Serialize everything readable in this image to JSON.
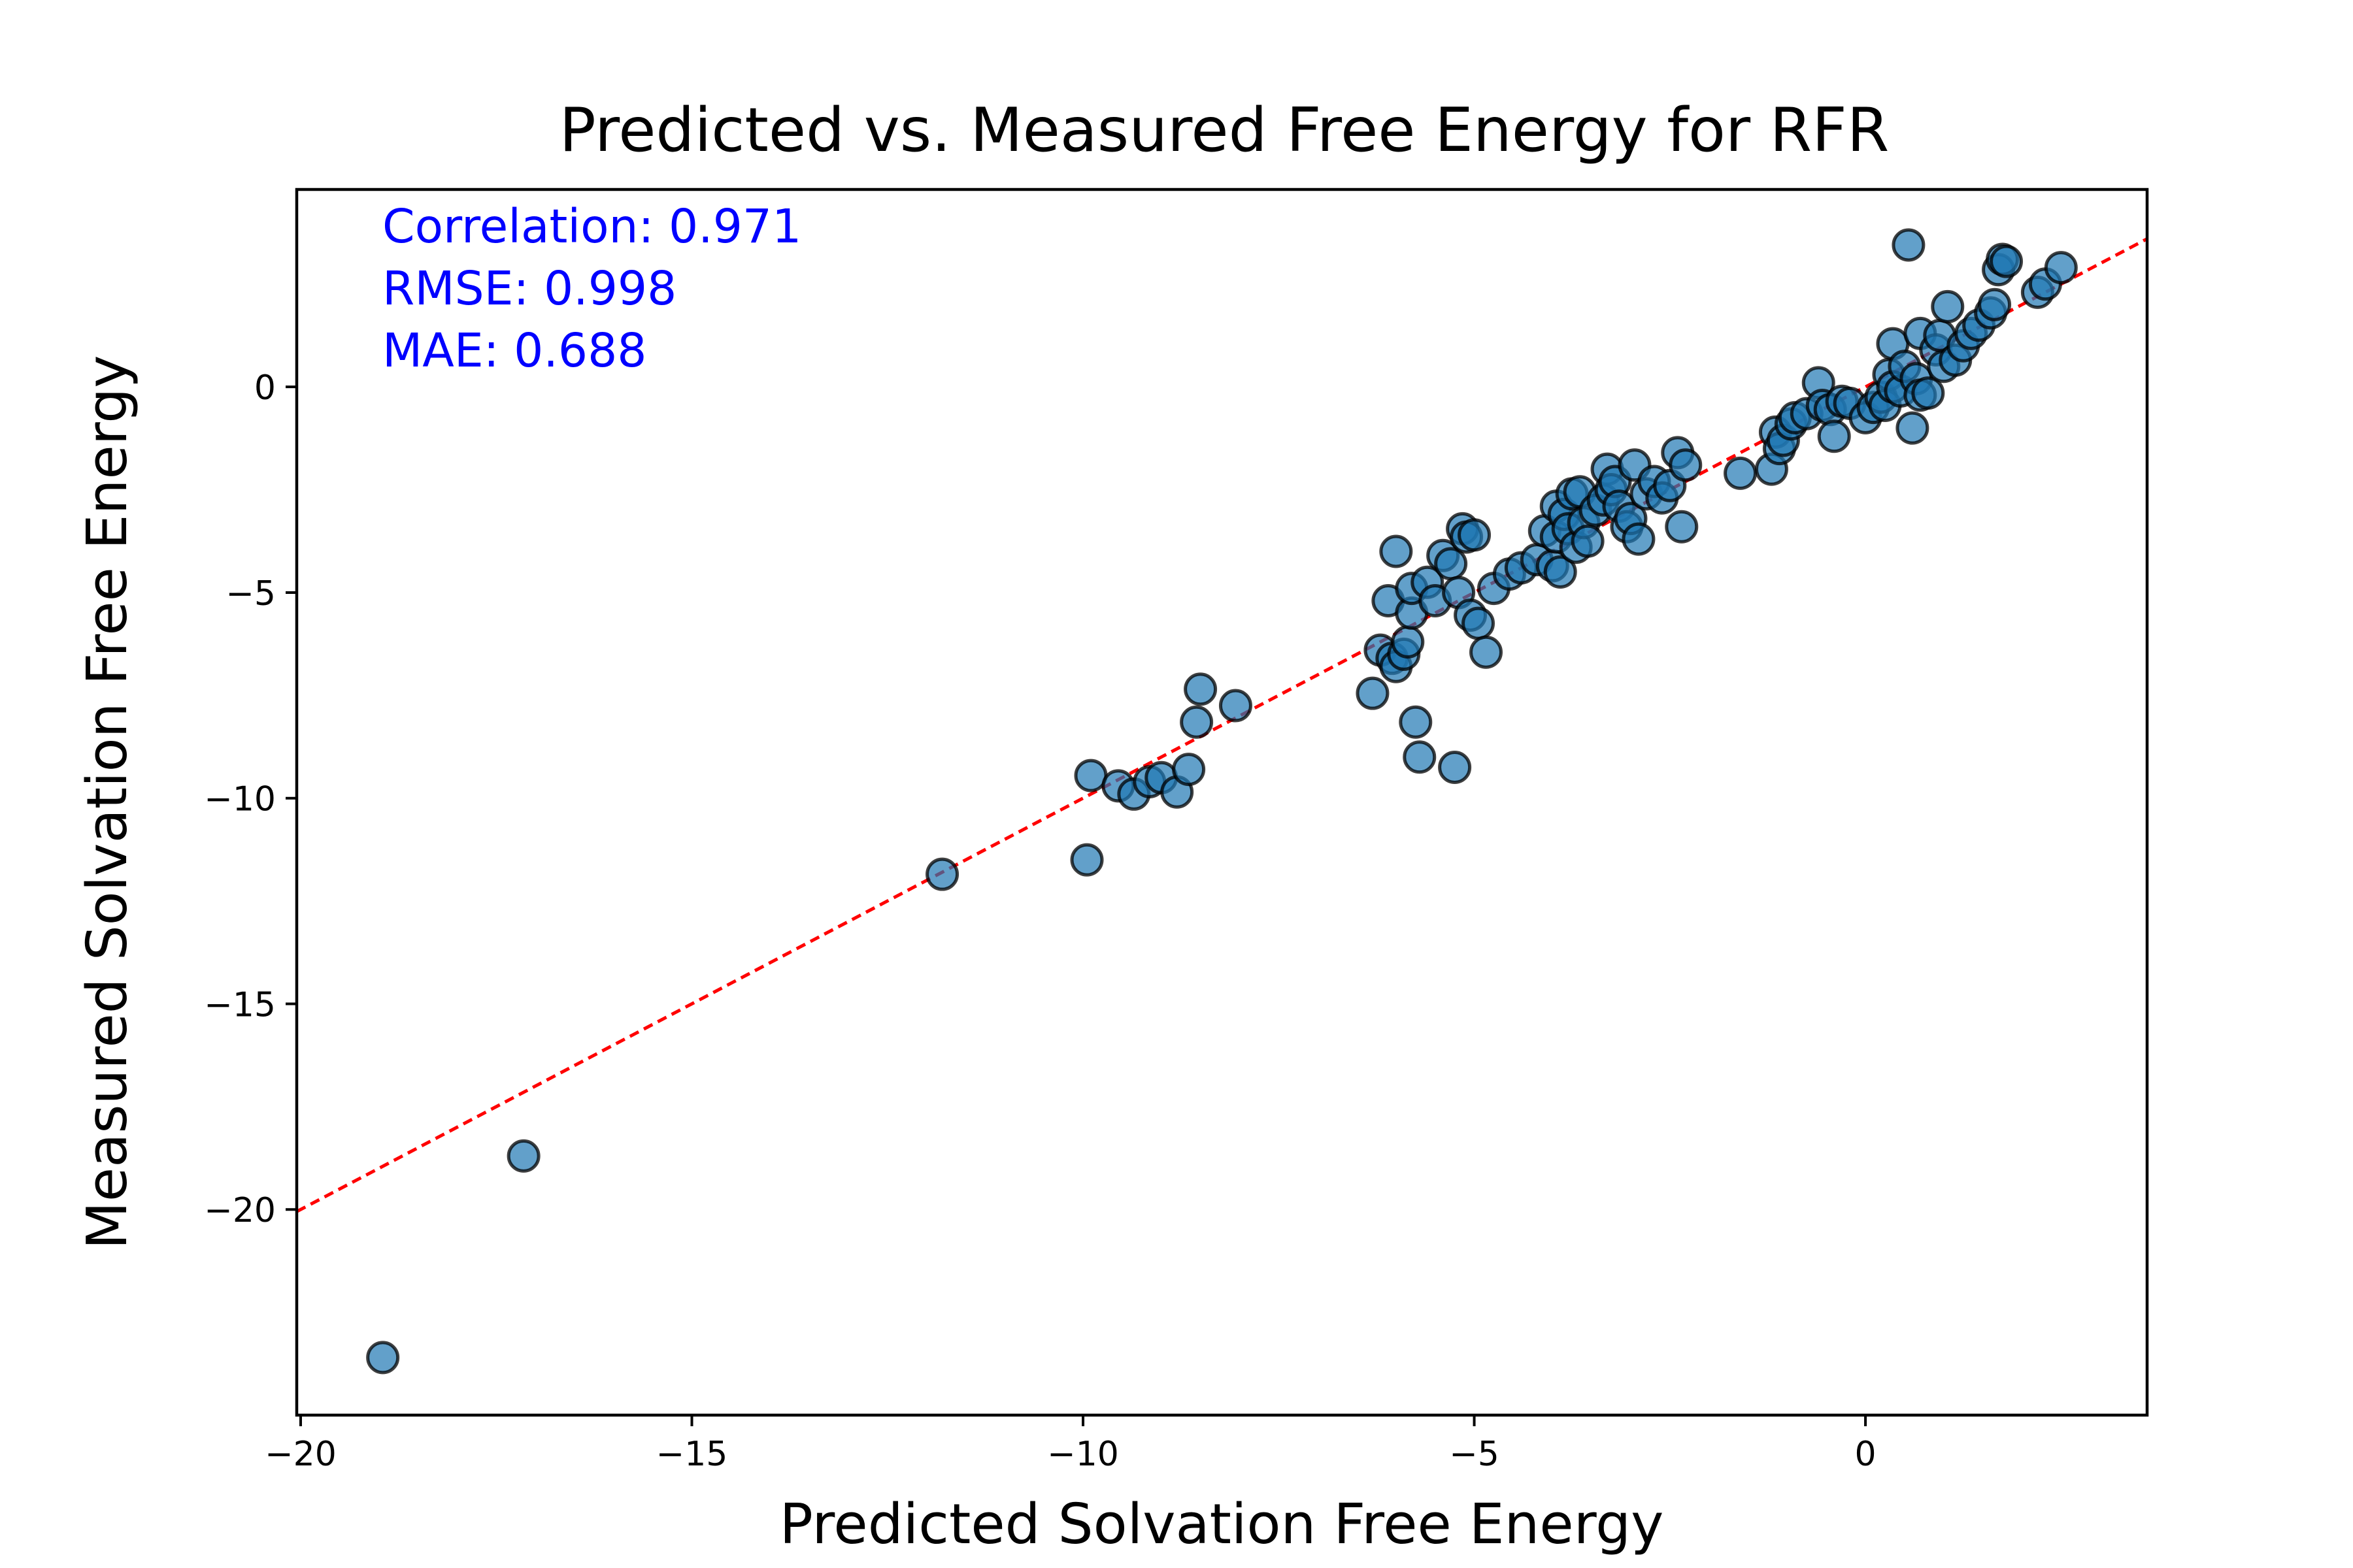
{
  "chart_data": {
    "type": "scatter",
    "title": "Predicted vs. Measured Free Energy for RFR",
    "xlabel": "Predicted Solvation Free Energy",
    "ylabel": "Measured Solvation Free Energy",
    "xlim": [
      -20.05,
      3.6
    ],
    "ylim": [
      -25.0,
      4.8
    ],
    "xticks": [
      -20,
      -15,
      -10,
      -5,
      0
    ],
    "xtick_labels": [
      "−20",
      "−15",
      "−10",
      "−5",
      "0"
    ],
    "yticks": [
      0,
      -5,
      -10,
      -15,
      -20
    ],
    "ytick_labels": [
      "0",
      "−5",
      "−10",
      "−15",
      "−20"
    ],
    "grid": false,
    "annotations": [
      {
        "text": "Correlation: 0.971",
        "color": "#0000ff"
      },
      {
        "text": "RMSE: 0.998",
        "color": "#0000ff"
      },
      {
        "text": "MAE: 0.688",
        "color": "#0000ff"
      }
    ],
    "reference_line": {
      "style": "dashed",
      "color": "#ff0000",
      "points": [
        [
          -20.05,
          -20.05
        ],
        [
          3.6,
          3.6
        ]
      ]
    },
    "marker": {
      "fill": "#1f77b4",
      "opacity": 0.7,
      "edge": "#000000"
    },
    "points": [
      [
        -18.95,
        -23.6
      ],
      [
        -17.15,
        -18.7
      ],
      [
        -11.8,
        -11.85
      ],
      [
        -9.95,
        -11.5
      ],
      [
        -9.9,
        -9.45
      ],
      [
        -9.55,
        -9.7
      ],
      [
        -9.35,
        -9.9
      ],
      [
        -9.15,
        -9.6
      ],
      [
        -9.0,
        -9.5
      ],
      [
        -8.8,
        -9.85
      ],
      [
        -8.65,
        -9.3
      ],
      [
        -8.55,
        -8.15
      ],
      [
        -8.5,
        -7.35
      ],
      [
        -8.05,
        -7.75
      ],
      [
        -6.3,
        -7.45
      ],
      [
        -6.2,
        -6.4
      ],
      [
        -6.1,
        -5.2
      ],
      [
        -6.05,
        -6.6
      ],
      [
        -6.0,
        -6.8
      ],
      [
        -6.0,
        -4.0
      ],
      [
        -5.9,
        -6.5
      ],
      [
        -5.85,
        -6.2
      ],
      [
        -5.8,
        -5.5
      ],
      [
        -5.8,
        -4.9
      ],
      [
        -5.75,
        -8.15
      ],
      [
        -5.7,
        -9.0
      ],
      [
        -5.6,
        -4.75
      ],
      [
        -5.5,
        -5.2
      ],
      [
        -5.4,
        -4.1
      ],
      [
        -5.3,
        -4.3
      ],
      [
        -5.25,
        -9.25
      ],
      [
        -5.2,
        -5.0
      ],
      [
        -5.15,
        -3.45
      ],
      [
        -5.1,
        -3.65
      ],
      [
        -5.05,
        -5.55
      ],
      [
        -5.0,
        -3.6
      ],
      [
        -4.95,
        -5.75
      ],
      [
        -4.85,
        -6.45
      ],
      [
        -4.75,
        -4.9
      ],
      [
        -4.55,
        -4.55
      ],
      [
        -4.4,
        -4.4
      ],
      [
        -4.2,
        -4.2
      ],
      [
        -4.1,
        -3.5
      ],
      [
        -4.0,
        -4.35
      ],
      [
        -3.95,
        -2.9
      ],
      [
        -3.95,
        -3.65
      ],
      [
        -3.9,
        -4.5
      ],
      [
        -3.85,
        -3.1
      ],
      [
        -3.8,
        -3.45
      ],
      [
        -3.75,
        -2.6
      ],
      [
        -3.7,
        -3.9
      ],
      [
        -3.65,
        -2.55
      ],
      [
        -3.6,
        -3.3
      ],
      [
        -3.55,
        -3.75
      ],
      [
        -3.45,
        -3.0
      ],
      [
        -3.35,
        -2.75
      ],
      [
        -3.3,
        -2.0
      ],
      [
        -3.25,
        -2.5
      ],
      [
        -3.2,
        -2.3
      ],
      [
        -3.15,
        -2.9
      ],
      [
        -3.05,
        -3.4
      ],
      [
        -3.0,
        -3.2
      ],
      [
        -2.95,
        -1.9
      ],
      [
        -2.9,
        -3.7
      ],
      [
        -2.8,
        -2.6
      ],
      [
        -2.7,
        -2.3
      ],
      [
        -2.6,
        -2.7
      ],
      [
        -2.5,
        -2.4
      ],
      [
        -2.4,
        -1.6
      ],
      [
        -2.35,
        -3.4
      ],
      [
        -2.3,
        -1.9
      ],
      [
        -1.6,
        -2.1
      ],
      [
        -1.2,
        -2.0
      ],
      [
        -1.15,
        -1.1
      ],
      [
        -1.1,
        -1.5
      ],
      [
        -1.05,
        -1.3
      ],
      [
        -0.95,
        -0.9
      ],
      [
        -0.9,
        -0.75
      ],
      [
        -0.75,
        -0.65
      ],
      [
        -0.6,
        0.1
      ],
      [
        -0.55,
        -0.45
      ],
      [
        -0.45,
        -0.55
      ],
      [
        -0.4,
        -1.2
      ],
      [
        -0.3,
        -0.35
      ],
      [
        -0.2,
        -0.4
      ],
      [
        0.0,
        -0.75
      ],
      [
        0.1,
        -0.5
      ],
      [
        0.2,
        -0.25
      ],
      [
        0.25,
        -0.45
      ],
      [
        0.3,
        0.3
      ],
      [
        0.35,
        0.0
      ],
      [
        0.35,
        1.05
      ],
      [
        0.45,
        -0.1
      ],
      [
        0.5,
        0.5
      ],
      [
        0.55,
        3.45
      ],
      [
        0.6,
        -1.0
      ],
      [
        0.65,
        0.2
      ],
      [
        0.7,
        -0.2
      ],
      [
        0.7,
        1.3
      ],
      [
        0.8,
        -0.15
      ],
      [
        0.9,
        0.9
      ],
      [
        0.95,
        1.25
      ],
      [
        1.0,
        0.5
      ],
      [
        1.05,
        1.95
      ],
      [
        1.15,
        0.65
      ],
      [
        1.25,
        1.0
      ],
      [
        1.35,
        1.3
      ],
      [
        1.45,
        1.5
      ],
      [
        1.6,
        1.8
      ],
      [
        1.65,
        2.0
      ],
      [
        1.7,
        2.85
      ],
      [
        1.75,
        3.1
      ],
      [
        1.8,
        3.05
      ],
      [
        2.2,
        2.3
      ],
      [
        2.3,
        2.5
      ],
      [
        2.5,
        2.9
      ]
    ]
  }
}
